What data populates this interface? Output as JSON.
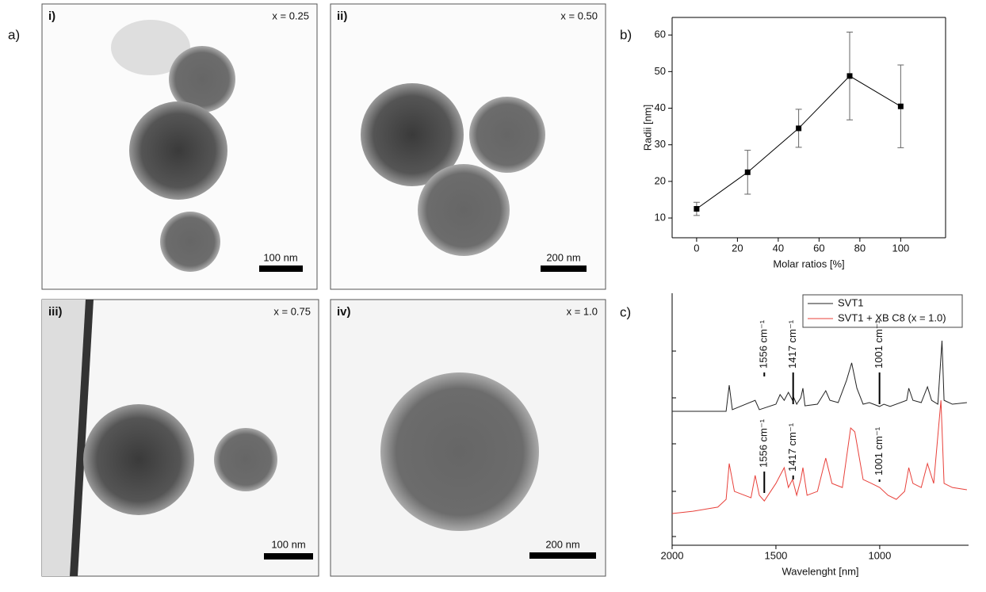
{
  "panel_labels": [
    "a)",
    "b)",
    "c)"
  ],
  "tem_images": [
    {
      "label": "i)",
      "composition": "x = 0.25",
      "scale_bar": "100 nm"
    },
    {
      "label": "ii)",
      "composition": "x = 0.50",
      "scale_bar": "200 nm"
    },
    {
      "label": "iii)",
      "composition": "x = 0.75",
      "scale_bar": "100 nm"
    },
    {
      "label": "iv)",
      "composition": "x = 1.0",
      "scale_bar": "200 nm"
    }
  ],
  "chart_data": [
    {
      "type": "line",
      "xlabel": "Molar ratios [%]",
      "ylabel": "Radii [nm]",
      "x": [
        0,
        25,
        50,
        75,
        100
      ],
      "series": [
        {
          "color": "#000000",
          "values": [
            12.5,
            22.5,
            34.5,
            48.8,
            40.5
          ],
          "errors": [
            1.8,
            6,
            5.2,
            12,
            11.3
          ]
        }
      ],
      "xlim": [
        -12,
        122
      ],
      "ylim": [
        4.6,
        64.8
      ],
      "xticks": [
        0,
        20,
        40,
        60,
        80,
        100
      ],
      "yticks": [
        10,
        20,
        30,
        40,
        50,
        60
      ]
    },
    {
      "type": "line",
      "xlabel": "Wavelenght [nm]",
      "xlim": [
        2000,
        572
      ],
      "ylim": [
        0,
        100
      ],
      "xticks": [
        2000,
        1500,
        1000
      ],
      "legend": "top-right",
      "series": [
        {
          "name": "SVT1",
          "color": "#222222",
          "x": [
            2000,
            1740,
            1725,
            1710,
            1600,
            1580,
            1500,
            1480,
            1460,
            1440,
            1420,
            1417,
            1400,
            1380,
            1370,
            1360,
            1300,
            1260,
            1240,
            1200,
            1160,
            1135,
            1110,
            1080,
            1050,
            1001,
            980,
            950,
            870,
            860,
            840,
            800,
            770,
            750,
            720,
            700,
            690,
            650,
            580
          ],
          "values": [
            58.7,
            58.7,
            70.1,
            59.4,
            63.5,
            59.4,
            61.8,
            66.0,
            63.5,
            67.0,
            63.5,
            65.3,
            61.8,
            64.6,
            68.8,
            61.1,
            61.8,
            67.7,
            63.5,
            62.5,
            72.2,
            79.9,
            68.8,
            61.8,
            62.5,
            60.8,
            61.8,
            60.8,
            63.5,
            68.8,
            63.5,
            62.5,
            69.4,
            63.5,
            61.8,
            89.6,
            63.5,
            61.8,
            62.5
          ]
        },
        {
          "name": "SVT1 + XB C8 (x = 1.0)",
          "color": "#e8403a",
          "x": [
            2000,
            1900,
            1780,
            1740,
            1725,
            1700,
            1620,
            1600,
            1580,
            1556,
            1500,
            1480,
            1460,
            1440,
            1420,
            1400,
            1380,
            1370,
            1350,
            1300,
            1260,
            1230,
            1180,
            1140,
            1120,
            1080,
            1040,
            1000,
            960,
            920,
            880,
            860,
            840,
            800,
            770,
            740,
            705,
            690,
            650,
            580
          ],
          "values": [
            13.9,
            14.9,
            16.7,
            20.1,
            35.8,
            23.6,
            20.8,
            30.6,
            21.9,
            19.4,
            27.1,
            30.6,
            34.0,
            25.3,
            28.8,
            21.9,
            28.8,
            34.0,
            21.9,
            23.6,
            38.2,
            27.1,
            25.3,
            51.4,
            49.7,
            28.8,
            27.1,
            25.3,
            21.9,
            20.1,
            23.6,
            34.0,
            27.1,
            25.3,
            35.8,
            27.1,
            63.5,
            27.1,
            25.3,
            24.3
          ]
        }
      ],
      "annotations": [
        {
          "text": "1556 cm⁻¹",
          "x": 1556
        },
        {
          "text": "1417 cm⁻¹",
          "x": 1417
        },
        {
          "text": "1001 cm⁻¹",
          "x": 1001
        },
        {
          "text": "1556 cm⁻¹",
          "x": 1556
        },
        {
          "text": "1417 cm⁻¹",
          "x": 1417
        },
        {
          "text": "1001 cm⁻¹",
          "x": 1001
        }
      ]
    }
  ]
}
